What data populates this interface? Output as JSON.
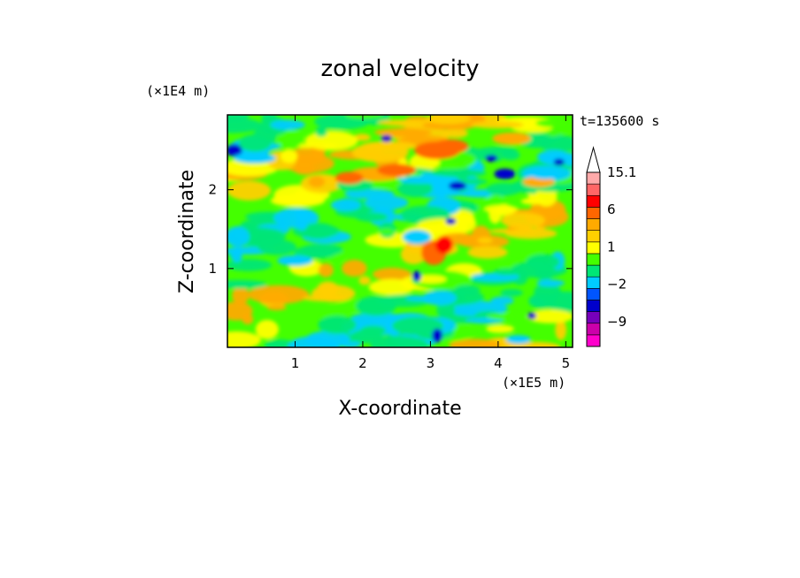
{
  "chart_data": {
    "type": "heatmap",
    "title": "zonal velocity",
    "xlabel": "X-coordinate",
    "ylabel": "Z-coordinate",
    "x_unit": "(×1E5 m)",
    "y_unit": "(×1E4 m)",
    "time_label": "t=135600 s",
    "xlim": [
      0,
      5.1
    ],
    "ylim": [
      0,
      2.95
    ],
    "x_ticks": [
      1,
      2,
      3,
      4,
      5
    ],
    "y_ticks": [
      1,
      2
    ],
    "colorbar": {
      "levels": [
        -15,
        -12,
        -9,
        -6,
        -4,
        -2,
        -1,
        0,
        1,
        2,
        4,
        6,
        9,
        12,
        15.1
      ],
      "labels": [
        "15.1",
        "6",
        "1",
        "−2",
        "−9"
      ],
      "label_values": [
        15.1,
        6,
        1,
        -2,
        -9
      ],
      "colors": [
        "#ff00cc",
        "#cc00aa",
        "#7700bb",
        "#0000cc",
        "#0055ff",
        "#00ccff",
        "#00e676",
        "#44ff00",
        "#ffff00",
        "#ffd000",
        "#ffaa00",
        "#ff6600",
        "#ff0000",
        "#ff6666",
        "#ffaaaa"
      ],
      "extend": "max"
    }
  }
}
